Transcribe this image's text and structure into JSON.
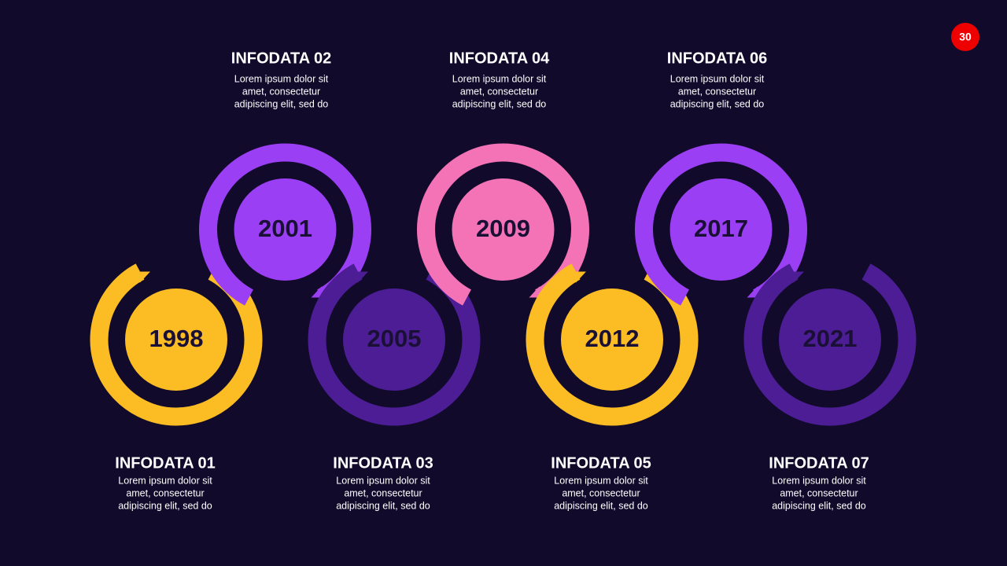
{
  "page_number": "30",
  "items": [
    {
      "year": "1998",
      "title": "INFODATA  01",
      "text": [
        "Lorem ipsum dolor  sit",
        "amet, consectetur",
        "adipiscing elit, sed do"
      ],
      "color": "#fbbd23",
      "row": "bottom"
    },
    {
      "year": "2001",
      "title": "INFODATA  02",
      "text": [
        "Lorem ipsum dolor  sit",
        "amet, consectetur",
        "adipiscing elit, sed do"
      ],
      "color": "#9b3ff5",
      "row": "top"
    },
    {
      "year": "2005",
      "title": "INFODATA  03",
      "text": [
        "Lorem ipsum dolor  sit",
        "amet, consectetur",
        "adipiscing elit, sed do"
      ],
      "color": "#4c1d95",
      "row": "bottom"
    },
    {
      "year": "2009",
      "title": "INFODATA  04",
      "text": [
        "Lorem ipsum dolor  sit",
        "amet, consectetur",
        "adipiscing elit, sed do"
      ],
      "color": "#f472b6",
      "row": "top"
    },
    {
      "year": "2012",
      "title": "INFODATA  05",
      "text": [
        "Lorem ipsum dolor  sit",
        "amet, consectetur",
        "adipiscing elit, sed do"
      ],
      "color": "#fbbd23",
      "row": "bottom"
    },
    {
      "year": "2017",
      "title": "INFODATA  06",
      "text": [
        "Lorem ipsum dolor  sit",
        "amet, consectetur",
        "adipiscing elit, sed do"
      ],
      "color": "#9b3ff5",
      "row": "top"
    },
    {
      "year": "2021",
      "title": "INFODATA  07",
      "text": [
        "Lorem ipsum dolor  sit",
        "amet, consectetur",
        "adipiscing elit, sed do"
      ],
      "color": "#4c1d95",
      "row": "bottom"
    }
  ]
}
